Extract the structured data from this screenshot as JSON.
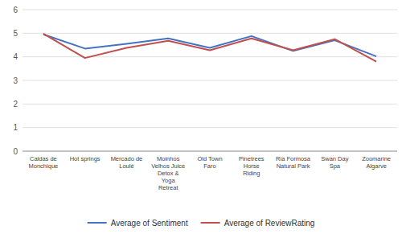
{
  "chart_data": {
    "type": "line",
    "categories": [
      "Caldas de\nMonchique",
      "Hot springs",
      "Mercado de\nLoulé",
      "Moinhos\nVelhos Juice\nDetox &\nYoga\nRetreat",
      "Old Town\nFaro",
      "Pinetrees\nHorse\nRiding",
      "Ria Formosa\nNatural Park",
      "Swan Day\nSpa",
      "Zoomarine\nAlgarve"
    ],
    "series": [
      {
        "name": "Average of Sentiment",
        "color": "#4472C4",
        "values": [
          4.95,
          4.35,
          4.55,
          4.78,
          4.38,
          4.88,
          4.25,
          4.7,
          4.02
        ]
      },
      {
        "name": "Average of ReviewRating",
        "color": "#C0504D",
        "values": [
          4.98,
          3.95,
          4.38,
          4.68,
          4.28,
          4.78,
          4.28,
          4.75,
          3.8
        ]
      }
    ],
    "ylim": [
      0,
      6
    ],
    "yticks": [
      0,
      1,
      2,
      3,
      4,
      5,
      6
    ],
    "grid": true,
    "legend": "bottom"
  }
}
